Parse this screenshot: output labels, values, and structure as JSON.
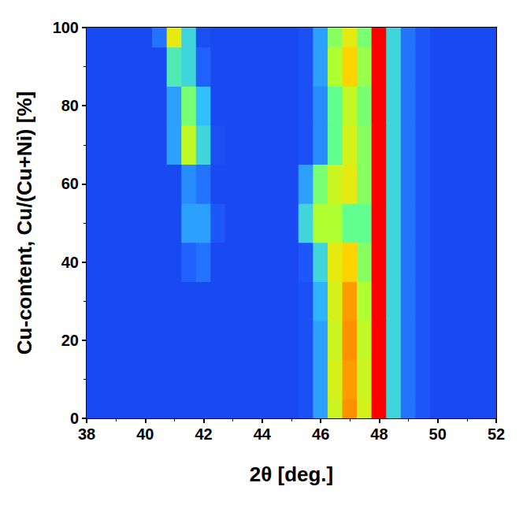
{
  "chart_data": {
    "type": "heatmap",
    "x_label": "2θ [deg.]",
    "y_label": "Cu-content, Cu/(Cu+Ni) [%]",
    "x": [
      38,
      38.5,
      39,
      39.5,
      40,
      40.5,
      41,
      41.5,
      42,
      42.5,
      43,
      43.5,
      44,
      44.5,
      45,
      45.5,
      46,
      46.5,
      47,
      47.5,
      48,
      48.5,
      49,
      49.5,
      50,
      50.5,
      51,
      51.5,
      52
    ],
    "y": [
      0,
      10,
      20,
      30,
      40,
      50,
      60,
      70,
      80,
      90,
      100
    ],
    "z": [
      [
        8,
        8,
        8,
        8,
        8,
        8,
        8,
        8,
        8,
        8,
        8,
        8,
        8,
        8,
        8,
        10,
        25,
        60,
        82,
        62,
        100,
        35,
        18,
        12,
        8,
        8,
        8,
        8,
        8
      ],
      [
        8,
        8,
        8,
        8,
        8,
        8,
        8,
        8,
        8,
        8,
        8,
        8,
        8,
        8,
        8,
        10,
        25,
        62,
        80,
        60,
        100,
        35,
        18,
        12,
        8,
        8,
        8,
        8,
        8
      ],
      [
        8,
        8,
        8,
        8,
        8,
        8,
        8,
        8,
        8,
        8,
        8,
        8,
        8,
        8,
        8,
        10,
        25,
        60,
        82,
        58,
        100,
        35,
        18,
        12,
        8,
        8,
        8,
        8,
        8
      ],
      [
        8,
        8,
        8,
        8,
        8,
        8,
        8,
        8,
        8,
        8,
        8,
        8,
        8,
        8,
        8,
        10,
        28,
        62,
        80,
        55,
        100,
        35,
        18,
        12,
        8,
        8,
        8,
        8,
        8
      ],
      [
        8,
        8,
        8,
        8,
        8,
        8,
        8,
        15,
        18,
        8,
        8,
        8,
        8,
        8,
        8,
        12,
        35,
        65,
        72,
        50,
        100,
        35,
        18,
        12,
        8,
        8,
        8,
        8,
        8
      ],
      [
        8,
        8,
        8,
        8,
        8,
        8,
        8,
        25,
        25,
        12,
        8,
        8,
        8,
        8,
        8,
        35,
        55,
        55,
        45,
        45,
        100,
        35,
        18,
        12,
        8,
        8,
        8,
        8,
        8
      ],
      [
        8,
        8,
        8,
        8,
        8,
        8,
        8,
        22,
        18,
        8,
        8,
        8,
        8,
        8,
        8,
        25,
        48,
        60,
        65,
        50,
        100,
        35,
        18,
        12,
        8,
        8,
        8,
        8,
        8
      ],
      [
        8,
        8,
        8,
        8,
        8,
        8,
        25,
        58,
        35,
        10,
        8,
        8,
        8,
        8,
        8,
        10,
        22,
        45,
        62,
        50,
        100,
        35,
        18,
        12,
        8,
        8,
        8,
        8,
        8
      ],
      [
        8,
        8,
        8,
        8,
        8,
        8,
        25,
        48,
        30,
        8,
        8,
        8,
        8,
        8,
        8,
        10,
        22,
        45,
        58,
        48,
        100,
        35,
        18,
        12,
        8,
        8,
        8,
        8,
        8
      ],
      [
        8,
        8,
        8,
        8,
        8,
        8,
        40,
        35,
        15,
        8,
        8,
        8,
        8,
        8,
        8,
        10,
        25,
        55,
        72,
        52,
        100,
        35,
        18,
        12,
        8,
        8,
        8,
        8,
        8
      ],
      [
        8,
        8,
        8,
        8,
        8,
        18,
        65,
        35,
        10,
        8,
        8,
        8,
        8,
        8,
        8,
        10,
        25,
        50,
        65,
        48,
        100,
        35,
        18,
        12,
        8,
        8,
        8,
        8,
        8
      ]
    ],
    "zlim": [
      0,
      100
    ],
    "xlim": [
      38,
      52
    ],
    "xticks": [
      38,
      40,
      42,
      44,
      46,
      48,
      50,
      52
    ],
    "ylim": [
      0,
      100
    ],
    "yticks": [
      0,
      20,
      40,
      60,
      80,
      100
    ]
  }
}
